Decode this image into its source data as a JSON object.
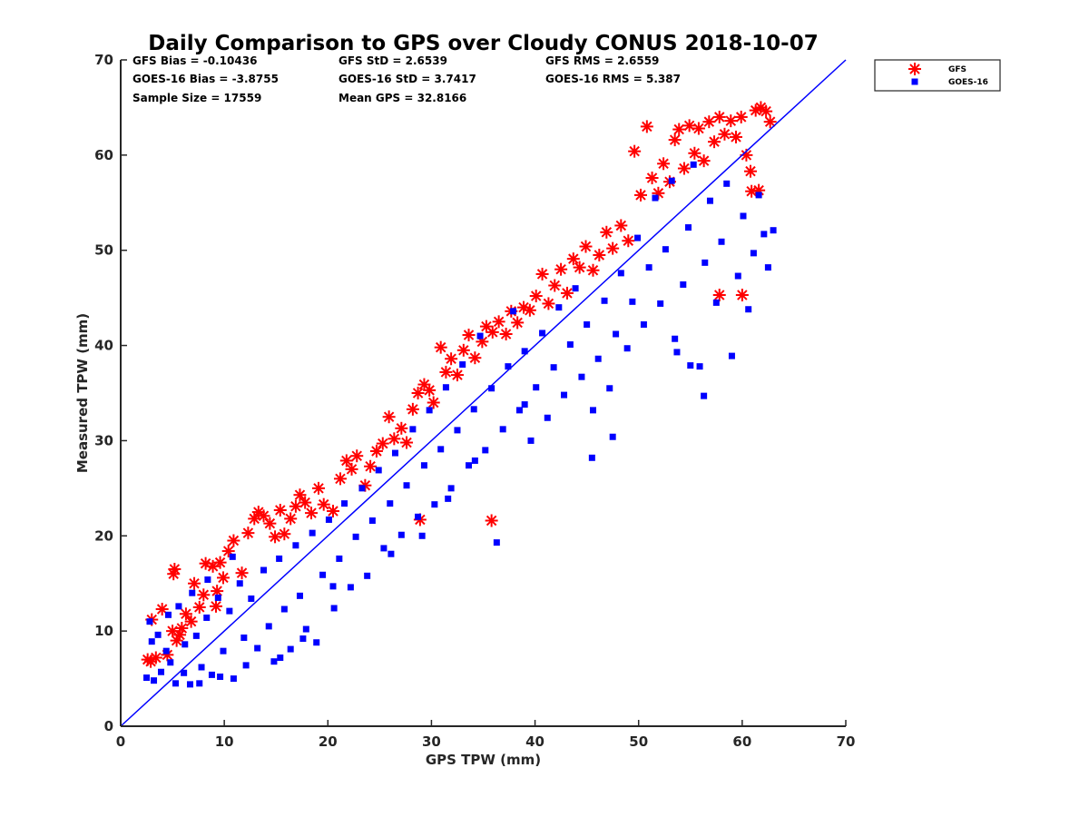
{
  "chart_data": {
    "type": "scatter",
    "title": "Daily Comparison to GPS over Cloudy CONUS 2018-10-07",
    "xlabel": "GPS TPW (mm)",
    "ylabel": "Measured TPW (mm)",
    "xlim": [
      0,
      70
    ],
    "ylim": [
      0,
      70
    ],
    "xticks": [
      "0",
      "10",
      "20",
      "30",
      "40",
      "50",
      "60",
      "70"
    ],
    "yticks": [
      "0",
      "10",
      "20",
      "30",
      "40",
      "50",
      "60",
      "70"
    ],
    "grid": false,
    "legend_position": "outside top-right",
    "reference_line": {
      "x": [
        0,
        70
      ],
      "y": [
        0,
        70
      ],
      "color": "#0000ff"
    },
    "stats": [
      {
        "label": "GFS Bias = -0.10436"
      },
      {
        "label": "GFS StD = 2.6539"
      },
      {
        "label": "GFS RMS = 2.6559"
      },
      {
        "label": "GOES-16 Bias = -3.8755"
      },
      {
        "label": "GOES-16 StD = 3.7417"
      },
      {
        "label": "GOES-16 RMS = 5.387"
      },
      {
        "label": "Sample Size = 17559"
      },
      {
        "label": "Mean GPS = 32.8166"
      }
    ],
    "series": [
      {
        "name": "GFS",
        "marker": "asterisk",
        "color": "#ff0000",
        "points": [
          [
            2.6,
            7.0
          ],
          [
            3.0,
            11.2
          ],
          [
            2.9,
            6.8
          ],
          [
            3.4,
            7.2
          ],
          [
            4.0,
            12.3
          ],
          [
            4.5,
            7.5
          ],
          [
            5.0,
            10.0
          ],
          [
            5.2,
            16.5
          ],
          [
            5.1,
            16.0
          ],
          [
            5.4,
            9.0
          ],
          [
            5.9,
            10.3
          ],
          [
            6.3,
            11.8
          ],
          [
            6.8,
            11.0
          ],
          [
            7.1,
            15.0
          ],
          [
            7.6,
            12.5
          ],
          [
            8.2,
            17.1
          ],
          [
            8.9,
            16.8
          ],
          [
            9.3,
            14.2
          ],
          [
            9.6,
            17.2
          ],
          [
            9.9,
            15.6
          ],
          [
            10.4,
            18.4
          ],
          [
            10.9,
            19.5
          ],
          [
            11.7,
            16.1
          ],
          [
            12.3,
            20.3
          ],
          [
            12.9,
            21.8
          ],
          [
            13.3,
            22.5
          ],
          [
            13.8,
            22.1
          ],
          [
            14.4,
            21.3
          ],
          [
            14.9,
            19.9
          ],
          [
            15.4,
            22.7
          ],
          [
            15.8,
            20.2
          ],
          [
            16.4,
            21.8
          ],
          [
            16.9,
            23.1
          ],
          [
            17.3,
            24.3
          ],
          [
            17.8,
            23.5
          ],
          [
            18.4,
            22.4
          ],
          [
            19.1,
            25.0
          ],
          [
            19.6,
            23.3
          ],
          [
            20.5,
            22.6
          ],
          [
            21.2,
            26.0
          ],
          [
            21.8,
            27.9
          ],
          [
            22.3,
            27.0
          ],
          [
            22.8,
            28.4
          ],
          [
            23.6,
            25.3
          ],
          [
            24.1,
            27.3
          ],
          [
            24.7,
            28.9
          ],
          [
            25.3,
            29.7
          ],
          [
            25.9,
            32.5
          ],
          [
            26.4,
            30.2
          ],
          [
            27.1,
            31.3
          ],
          [
            27.6,
            29.8
          ],
          [
            28.2,
            33.3
          ],
          [
            28.7,
            35.0
          ],
          [
            29.3,
            35.9
          ],
          [
            29.8,
            35.3
          ],
          [
            30.2,
            34.0
          ],
          [
            30.9,
            39.8
          ],
          [
            31.4,
            37.2
          ],
          [
            31.9,
            38.6
          ],
          [
            32.5,
            36.9
          ],
          [
            33.1,
            39.5
          ],
          [
            33.6,
            41.1
          ],
          [
            34.2,
            38.7
          ],
          [
            34.9,
            40.4
          ],
          [
            35.3,
            42.0
          ],
          [
            35.9,
            41.4
          ],
          [
            36.5,
            42.5
          ],
          [
            37.2,
            41.2
          ],
          [
            37.7,
            43.6
          ],
          [
            38.3,
            42.4
          ],
          [
            38.9,
            44.0
          ],
          [
            39.5,
            43.7
          ],
          [
            40.1,
            45.2
          ],
          [
            40.7,
            47.5
          ],
          [
            41.3,
            44.4
          ],
          [
            41.9,
            46.3
          ],
          [
            42.5,
            48.0
          ],
          [
            43.1,
            45.5
          ],
          [
            43.7,
            49.1
          ],
          [
            44.3,
            48.2
          ],
          [
            44.9,
            50.4
          ],
          [
            45.6,
            47.9
          ],
          [
            46.2,
            49.5
          ],
          [
            46.9,
            51.9
          ],
          [
            47.5,
            50.2
          ],
          [
            48.3,
            52.6
          ],
          [
            49.0,
            51.0
          ],
          [
            49.6,
            60.4
          ],
          [
            50.2,
            55.8
          ],
          [
            50.8,
            63.0
          ],
          [
            51.3,
            57.6
          ],
          [
            51.9,
            56.0
          ],
          [
            52.4,
            59.1
          ],
          [
            53.0,
            57.2
          ],
          [
            53.5,
            61.6
          ],
          [
            53.9,
            62.7
          ],
          [
            54.4,
            58.6
          ],
          [
            54.9,
            63.1
          ],
          [
            55.4,
            60.2
          ],
          [
            55.8,
            62.8
          ],
          [
            56.3,
            59.4
          ],
          [
            56.8,
            63.5
          ],
          [
            57.3,
            61.4
          ],
          [
            57.8,
            64.0
          ],
          [
            58.3,
            62.2
          ],
          [
            58.9,
            63.6
          ],
          [
            59.4,
            61.9
          ],
          [
            59.9,
            64.0
          ],
          [
            60.4,
            60.0
          ],
          [
            60.8,
            58.3
          ],
          [
            61.3,
            64.7
          ],
          [
            61.8,
            65.0
          ],
          [
            62.3,
            64.6
          ],
          [
            62.7,
            63.5
          ],
          [
            61.6,
            56.3
          ],
          [
            60.9,
            56.2
          ],
          [
            57.8,
            45.3
          ],
          [
            60.0,
            45.3
          ],
          [
            35.8,
            21.6
          ],
          [
            28.9,
            21.7
          ],
          [
            5.7,
            9.6
          ],
          [
            8.0,
            13.8
          ],
          [
            9.2,
            12.6
          ]
        ]
      },
      {
        "name": "GOES-16",
        "marker": "square",
        "color": "#0000ff",
        "points": [
          [
            2.5,
            5.1
          ],
          [
            3.2,
            4.8
          ],
          [
            3.9,
            5.7
          ],
          [
            4.4,
            7.9
          ],
          [
            5.3,
            4.5
          ],
          [
            5.6,
            12.6
          ],
          [
            6.2,
            8.6
          ],
          [
            6.7,
            4.4
          ],
          [
            7.3,
            9.5
          ],
          [
            7.8,
            6.2
          ],
          [
            8.3,
            11.4
          ],
          [
            8.8,
            5.4
          ],
          [
            9.4,
            13.5
          ],
          [
            9.9,
            7.9
          ],
          [
            10.5,
            12.1
          ],
          [
            10.9,
            5.0
          ],
          [
            11.5,
            15.0
          ],
          [
            11.9,
            9.3
          ],
          [
            12.6,
            13.4
          ],
          [
            13.2,
            8.2
          ],
          [
            13.8,
            16.4
          ],
          [
            14.3,
            10.5
          ],
          [
            14.8,
            6.8
          ],
          [
            15.3,
            17.6
          ],
          [
            15.8,
            12.3
          ],
          [
            16.4,
            8.1
          ],
          [
            16.9,
            19.0
          ],
          [
            17.3,
            13.7
          ],
          [
            17.9,
            10.2
          ],
          [
            18.5,
            20.3
          ],
          [
            18.9,
            8.8
          ],
          [
            19.5,
            15.9
          ],
          [
            20.1,
            21.7
          ],
          [
            20.6,
            12.4
          ],
          [
            21.1,
            17.6
          ],
          [
            21.6,
            23.4
          ],
          [
            22.2,
            14.6
          ],
          [
            22.7,
            19.9
          ],
          [
            23.3,
            25.0
          ],
          [
            23.8,
            15.8
          ],
          [
            24.3,
            21.6
          ],
          [
            24.9,
            26.9
          ],
          [
            25.4,
            18.7
          ],
          [
            26.0,
            23.4
          ],
          [
            26.5,
            28.7
          ],
          [
            27.1,
            20.1
          ],
          [
            27.6,
            25.3
          ],
          [
            28.2,
            31.2
          ],
          [
            28.7,
            22.0
          ],
          [
            29.3,
            27.4
          ],
          [
            29.8,
            33.2
          ],
          [
            30.3,
            23.3
          ],
          [
            30.9,
            29.1
          ],
          [
            31.4,
            35.6
          ],
          [
            31.9,
            25.0
          ],
          [
            32.5,
            31.1
          ],
          [
            33.0,
            38.0
          ],
          [
            33.6,
            27.4
          ],
          [
            34.1,
            33.3
          ],
          [
            34.7,
            41.0
          ],
          [
            35.2,
            29.0
          ],
          [
            35.8,
            35.5
          ],
          [
            36.3,
            19.3
          ],
          [
            36.9,
            31.2
          ],
          [
            37.4,
            37.8
          ],
          [
            37.9,
            43.6
          ],
          [
            38.5,
            33.2
          ],
          [
            39.0,
            39.4
          ],
          [
            39.6,
            30.0
          ],
          [
            40.1,
            35.6
          ],
          [
            40.7,
            41.3
          ],
          [
            41.2,
            32.4
          ],
          [
            41.8,
            37.7
          ],
          [
            42.3,
            44.0
          ],
          [
            42.8,
            34.8
          ],
          [
            43.4,
            40.1
          ],
          [
            43.9,
            46.0
          ],
          [
            44.5,
            36.7
          ],
          [
            45.0,
            42.2
          ],
          [
            45.6,
            33.2
          ],
          [
            46.1,
            38.6
          ],
          [
            46.7,
            44.7
          ],
          [
            47.2,
            35.5
          ],
          [
            47.8,
            41.2
          ],
          [
            48.3,
            47.6
          ],
          [
            48.9,
            39.7
          ],
          [
            49.4,
            44.6
          ],
          [
            49.9,
            51.3
          ],
          [
            50.5,
            42.2
          ],
          [
            51.0,
            48.2
          ],
          [
            51.6,
            55.5
          ],
          [
            52.1,
            44.4
          ],
          [
            52.6,
            50.1
          ],
          [
            53.2,
            57.3
          ],
          [
            53.7,
            39.3
          ],
          [
            54.3,
            46.4
          ],
          [
            54.8,
            52.4
          ],
          [
            55.3,
            59.0
          ],
          [
            55.9,
            37.8
          ],
          [
            56.4,
            48.7
          ],
          [
            56.9,
            55.2
          ],
          [
            57.5,
            44.5
          ],
          [
            58.0,
            50.9
          ],
          [
            58.5,
            57.0
          ],
          [
            59.0,
            38.9
          ],
          [
            59.6,
            47.3
          ],
          [
            60.1,
            53.6
          ],
          [
            60.6,
            43.8
          ],
          [
            61.1,
            49.7
          ],
          [
            61.6,
            55.8
          ],
          [
            62.1,
            51.7
          ],
          [
            62.5,
            48.2
          ],
          [
            63.0,
            52.1
          ],
          [
            56.3,
            34.7
          ],
          [
            53.5,
            40.7
          ],
          [
            55.0,
            37.9
          ],
          [
            47.5,
            30.4
          ],
          [
            45.5,
            28.2
          ],
          [
            39.0,
            33.8
          ],
          [
            34.2,
            27.9
          ],
          [
            31.6,
            23.9
          ],
          [
            29.1,
            20.0
          ],
          [
            26.1,
            18.1
          ],
          [
            20.5,
            14.7
          ],
          [
            17.6,
            9.2
          ],
          [
            15.4,
            7.2
          ],
          [
            12.1,
            6.4
          ],
          [
            9.6,
            5.2
          ],
          [
            7.6,
            4.5
          ],
          [
            6.1,
            5.6
          ],
          [
            4.8,
            6.7
          ],
          [
            3.6,
            9.6
          ],
          [
            3.0,
            8.9
          ],
          [
            2.8,
            11.0
          ],
          [
            4.6,
            11.7
          ],
          [
            6.9,
            14.0
          ],
          [
            8.4,
            15.4
          ],
          [
            10.8,
            17.8
          ]
        ]
      }
    ]
  }
}
